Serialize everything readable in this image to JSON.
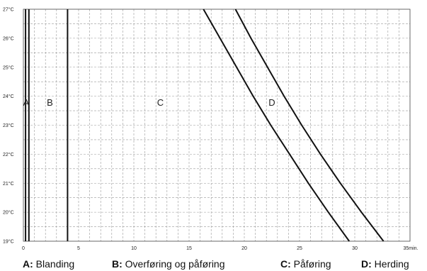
{
  "chart_data": {
    "type": "line",
    "title": "",
    "xlabel": "",
    "ylabel": "",
    "xlim": [
      0,
      35
    ],
    "ylim": [
      19,
      27
    ],
    "grid": true,
    "x_ticks": [
      "0",
      "5",
      "10",
      "15",
      "20",
      "25",
      "30"
    ],
    "x_unit_tick": "35min.",
    "y_ticks": [
      "19°C",
      "20°C",
      "21°C",
      "22°C",
      "23°C",
      "24°C",
      "25°C",
      "26°C",
      "27°C"
    ],
    "series": [
      {
        "points": [
          [
            0.2,
            19
          ],
          [
            0.2,
            27
          ]
        ]
      },
      {
        "points": [
          [
            0.5,
            19
          ],
          [
            0.5,
            27
          ]
        ]
      },
      {
        "points": [
          [
            4,
            19
          ],
          [
            4,
            27
          ]
        ]
      },
      {
        "points": [
          [
            16.3,
            27
          ],
          [
            17.8,
            26
          ],
          [
            19.3,
            25
          ],
          [
            20.8,
            24
          ],
          [
            22.4,
            23
          ],
          [
            24.1,
            22
          ],
          [
            25.8,
            21
          ],
          [
            27.6,
            20
          ],
          [
            29.5,
            19
          ]
        ]
      },
      {
        "points": [
          [
            19.2,
            27
          ],
          [
            20.6,
            26
          ],
          [
            22.1,
            25
          ],
          [
            23.6,
            24
          ],
          [
            25.2,
            23
          ],
          [
            26.9,
            22
          ],
          [
            28.7,
            21
          ],
          [
            30.6,
            20
          ],
          [
            32.6,
            19
          ]
        ]
      }
    ],
    "region_labels": [
      {
        "text": "A",
        "x": 0.25,
        "y": 23.8
      },
      {
        "text": "B",
        "x": 2.4,
        "y": 23.8
      },
      {
        "text": "C",
        "x": 12.4,
        "y": 23.8
      },
      {
        "text": "D",
        "x": 22.5,
        "y": 23.8
      }
    ]
  },
  "legend": [
    {
      "key": "A:",
      "label": " Blanding"
    },
    {
      "key": "B:",
      "label": " Overføring og påføring"
    },
    {
      "key": "C:",
      "label": " Påføring"
    },
    {
      "key": "D:",
      "label": " Herding"
    }
  ]
}
